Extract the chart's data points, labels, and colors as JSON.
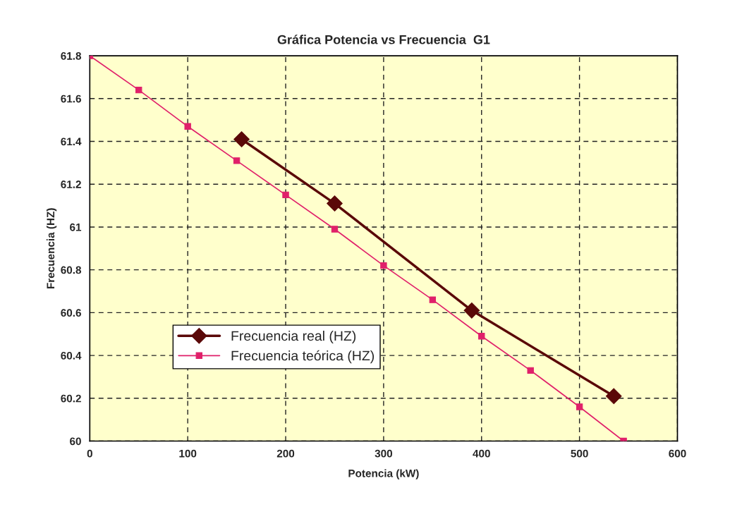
{
  "chart_data": {
    "type": "line",
    "title": "Gráfica Potencia vs Frecuencia  G1",
    "xlabel": "Potencia (kW)",
    "ylabel": "Frecuencia (HZ)",
    "xlim": [
      0,
      600
    ],
    "xticks": [
      0,
      100,
      200,
      300,
      400,
      500,
      600
    ],
    "ylim": [
      60,
      61.8
    ],
    "yticks": [
      60,
      60.2,
      60.4,
      60.6,
      60.8,
      61,
      61.2,
      61.4,
      61.6,
      61.8
    ],
    "grid": true,
    "legend": "bottom left",
    "line_style": "solid",
    "series": [
      {
        "name": "Frecuencia real (HZ)",
        "color": "#5a0808",
        "marker": "diamond",
        "x": [
          155,
          250,
          390,
          535
        ],
        "values": [
          61.41,
          61.11,
          60.61,
          60.21
        ]
      },
      {
        "name": "Frecuencia teórica (HZ)",
        "color": "#e0206a",
        "marker": "square",
        "x": [
          0,
          50,
          100,
          150,
          200,
          250,
          300,
          350,
          400,
          450,
          500,
          545
        ],
        "values": [
          61.8,
          61.64,
          61.47,
          61.31,
          61.15,
          60.99,
          60.82,
          60.66,
          60.49,
          60.33,
          60.16,
          60.0
        ]
      }
    ]
  }
}
